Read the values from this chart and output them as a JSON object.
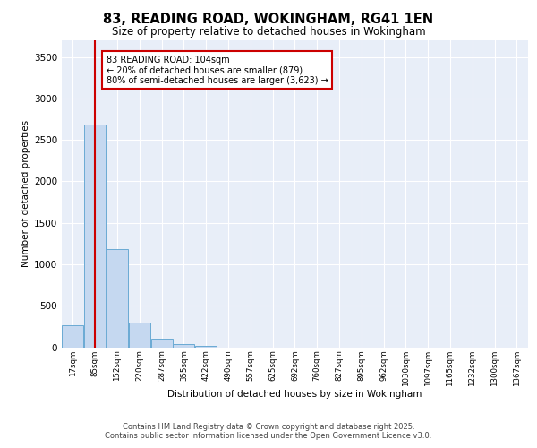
{
  "title_line1": "83, READING ROAD, WOKINGHAM, RG41 1EN",
  "title_line2": "Size of property relative to detached houses in Wokingham",
  "xlabel": "Distribution of detached houses by size in Wokingham",
  "ylabel": "Number of detached properties",
  "bin_labels": [
    "17sqm",
    "85sqm",
    "152sqm",
    "220sqm",
    "287sqm",
    "355sqm",
    "422sqm",
    "490sqm",
    "557sqm",
    "625sqm",
    "692sqm",
    "760sqm",
    "827sqm",
    "895sqm",
    "962sqm",
    "1030sqm",
    "1097sqm",
    "1165sqm",
    "1232sqm",
    "1300sqm",
    "1367sqm"
  ],
  "bar_heights": [
    270,
    2680,
    1180,
    300,
    100,
    35,
    20,
    0,
    0,
    0,
    0,
    0,
    0,
    0,
    0,
    0,
    0,
    0,
    0,
    0,
    0
  ],
  "bar_color": "#c5d8f0",
  "bar_edge_color": "#6aaad4",
  "red_line_x": 1.0,
  "red_line_color": "#cc0000",
  "annotation_text": "83 READING ROAD: 104sqm\n← 20% of detached houses are smaller (879)\n80% of semi-detached houses are larger (3,623) →",
  "annotation_box_color": "#ffffff",
  "annotation_box_edge": "#cc0000",
  "ylim": [
    0,
    3700
  ],
  "yticks": [
    0,
    500,
    1000,
    1500,
    2000,
    2500,
    3000,
    3500
  ],
  "background_color": "#e8eef8",
  "grid_color": "#ffffff",
  "footer_line1": "Contains HM Land Registry data © Crown copyright and database right 2025.",
  "footer_line2": "Contains public sector information licensed under the Open Government Licence v3.0."
}
